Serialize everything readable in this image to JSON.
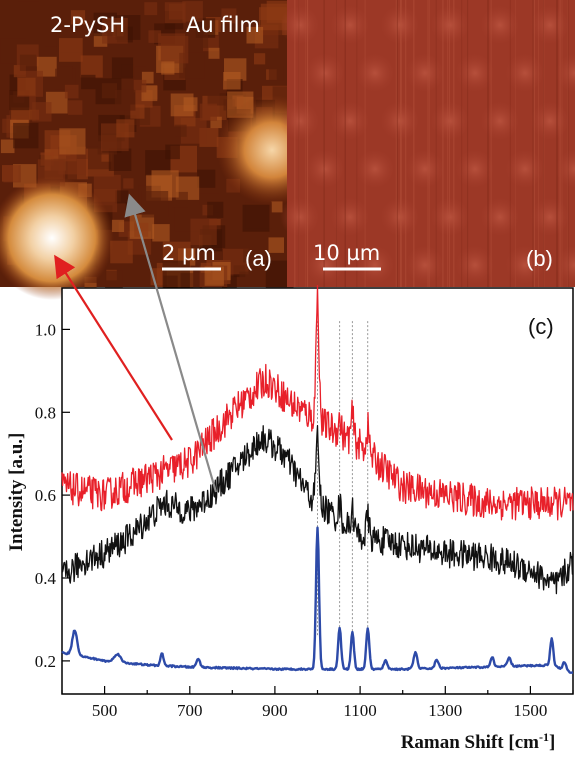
{
  "images": {
    "a": {
      "label_left": "2-PySH",
      "label_right": "Au film",
      "scale_bar": "2 µm",
      "panel_label": "(a)"
    },
    "b": {
      "scale_bar": "10 µm",
      "panel_label": "(b)"
    }
  },
  "colors": {
    "red_series": "#e8202a",
    "black_series": "#111111",
    "blue_series": "#2d4aa8",
    "red_arrow": "#e02020",
    "gray_arrow": "#8a8a8a"
  },
  "chart_data": {
    "type": "line",
    "panel_label": "(c)",
    "title": "",
    "xlabel": "Raman Shift [cm",
    "xlabel_sup": "-1",
    "xlabel_end": "]",
    "ylabel": "Intensity [a.u.]",
    "xlim": [
      400,
      1600
    ],
    "ylim": [
      0.12,
      1.1
    ],
    "xticks": [
      500,
      700,
      900,
      1100,
      1300,
      1500
    ],
    "yticks": [
      0.2,
      0.4,
      0.6,
      0.8,
      1.0
    ],
    "ytick_labels": [
      "0.2",
      "0.4",
      "0.6",
      "0.8",
      "1.0"
    ],
    "reference_lines_x": [
      1000,
      1052,
      1082,
      1118
    ],
    "series": [
      {
        "color": "#e8202a",
        "baseline": [
          [
            400,
            0.62
          ],
          [
            500,
            0.6
          ],
          [
            600,
            0.64
          ],
          [
            700,
            0.68
          ],
          [
            800,
            0.8
          ],
          [
            880,
            0.88
          ],
          [
            940,
            0.82
          ],
          [
            1000,
            0.78
          ],
          [
            1100,
            0.72
          ],
          [
            1200,
            0.62
          ],
          [
            1300,
            0.6
          ],
          [
            1400,
            0.58
          ],
          [
            1500,
            0.58
          ],
          [
            1600,
            0.58
          ]
        ],
        "noise": 0.04,
        "peaks": [
          [
            1000,
            0.3,
            5
          ],
          [
            1052,
            0.03,
            5
          ],
          [
            1082,
            0.06,
            5
          ],
          [
            1118,
            0.06,
            5
          ]
        ]
      },
      {
        "color": "#111111",
        "baseline": [
          [
            400,
            0.4
          ],
          [
            450,
            0.44
          ],
          [
            500,
            0.46
          ],
          [
            560,
            0.5
          ],
          [
            640,
            0.58
          ],
          [
            700,
            0.56
          ],
          [
            750,
            0.6
          ],
          [
            820,
            0.68
          ],
          [
            870,
            0.74
          ],
          [
            920,
            0.7
          ],
          [
            980,
            0.6
          ],
          [
            1050,
            0.54
          ],
          [
            1100,
            0.5
          ],
          [
            1200,
            0.48
          ],
          [
            1300,
            0.46
          ],
          [
            1400,
            0.45
          ],
          [
            1500,
            0.42
          ],
          [
            1560,
            0.38
          ],
          [
            1600,
            0.44
          ]
        ],
        "noise": 0.035,
        "peaks": [
          [
            1000,
            0.16,
            5
          ],
          [
            1052,
            0.04,
            5
          ],
          [
            1082,
            0.05,
            5
          ],
          [
            1118,
            0.05,
            5
          ]
        ]
      },
      {
        "color": "#2d4aa8",
        "baseline": [
          [
            400,
            0.22
          ],
          [
            500,
            0.2
          ],
          [
            600,
            0.19
          ],
          [
            700,
            0.185
          ],
          [
            900,
            0.18
          ],
          [
            1000,
            0.18
          ],
          [
            1200,
            0.18
          ],
          [
            1400,
            0.185
          ],
          [
            1550,
            0.19
          ],
          [
            1600,
            0.17
          ]
        ],
        "noise": 0.002,
        "peaks": [
          [
            430,
            0.06,
            8
          ],
          [
            530,
            0.02,
            10
          ],
          [
            635,
            0.03,
            5
          ],
          [
            720,
            0.02,
            6
          ],
          [
            1000,
            0.34,
            5
          ],
          [
            1052,
            0.1,
            5
          ],
          [
            1082,
            0.09,
            5
          ],
          [
            1118,
            0.1,
            5
          ],
          [
            1160,
            0.02,
            6
          ],
          [
            1230,
            0.04,
            6
          ],
          [
            1280,
            0.02,
            6
          ],
          [
            1410,
            0.025,
            5
          ],
          [
            1450,
            0.02,
            6
          ],
          [
            1550,
            0.065,
            5
          ],
          [
            1580,
            0.02,
            5
          ]
        ]
      }
    ]
  }
}
